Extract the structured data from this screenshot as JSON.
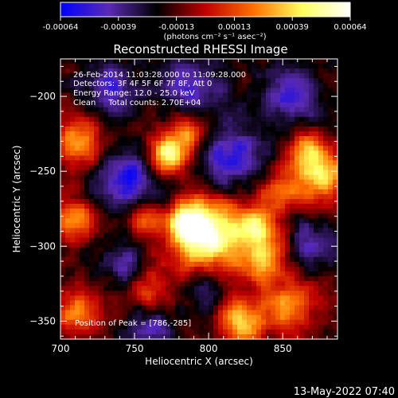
{
  "chart_data": {
    "type": "heatmap",
    "title": "Reconstructed RHESSI Image",
    "xlabel": "Heliocentric X (arcsec)",
    "ylabel": "Heliocentric Y (arcsec)",
    "xlim": [
      700,
      887
    ],
    "ylim": [
      -362,
      -175
    ],
    "x_ticks": [
      700,
      750,
      800,
      850
    ],
    "y_ticks": [
      -200,
      -250,
      -300,
      -350
    ],
    "colorbar": {
      "ticks": [
        "-0.00064",
        "-0.00039",
        "-0.00013",
        "0.00013",
        "0.00039",
        "0.00064"
      ],
      "unit_label": "(photons cm⁻² s⁻¹ asec⁻²)",
      "range": [
        -0.00064,
        0.00064
      ],
      "colors": [
        "#0000ff",
        "#5a2ab4",
        "#000000",
        "#c00000",
        "#ff7000",
        "#ffff60",
        "#ffffff"
      ]
    },
    "annotations": [
      "26-Feb-2014 11:03:28.000 to 11:09:28.000",
      "Detectors: 3F 4F 5F 6F 7F 8F, Att 0",
      "Energy Range: 12.0 - 25.0 keV",
      "Clean     Total counts: 2.70E+04"
    ],
    "peak_label": "Position of Peak = [786,-285]",
    "peak": [
      786,
      -285
    ],
    "sources": [
      {
        "x": 798,
        "y": -292,
        "amp": 1.0,
        "sigma": 16
      },
      {
        "x": 786,
        "y": -285,
        "amp": 0.7,
        "sigma": 8
      },
      {
        "x": 773,
        "y": -239,
        "amp": 0.85,
        "sigma": 9
      },
      {
        "x": 787,
        "y": -223,
        "amp": 0.45,
        "sigma": 9
      },
      {
        "x": 833,
        "y": -286,
        "amp": 0.6,
        "sigma": 10
      },
      {
        "x": 837,
        "y": -308,
        "amp": 0.55,
        "sigma": 12
      },
      {
        "x": 876,
        "y": -252,
        "amp": 0.7,
        "sigma": 12
      },
      {
        "x": 866,
        "y": -235,
        "amp": 0.45,
        "sigma": 9
      },
      {
        "x": 850,
        "y": -262,
        "amp": 0.4,
        "sigma": 9
      },
      {
        "x": 713,
        "y": -230,
        "amp": 0.55,
        "sigma": 12
      },
      {
        "x": 710,
        "y": -282,
        "amp": 0.5,
        "sigma": 10
      },
      {
        "x": 712,
        "y": -343,
        "amp": 0.45,
        "sigma": 11
      },
      {
        "x": 853,
        "y": -340,
        "amp": 0.5,
        "sigma": 13
      },
      {
        "x": 823,
        "y": -355,
        "amp": 0.55,
        "sigma": 10
      },
      {
        "x": 760,
        "y": -330,
        "amp": 0.3,
        "sigma": 12
      },
      {
        "x": 755,
        "y": -280,
        "amp": 0.35,
        "sigma": 8
      },
      {
        "x": 815,
        "y": -340,
        "amp": 0.3,
        "sigma": 9
      }
    ],
    "negative_regions": [
      {
        "x": 745,
        "y": -255,
        "amp": 0.6,
        "sigma": 14
      },
      {
        "x": 815,
        "y": -240,
        "amp": 0.6,
        "sigma": 14
      },
      {
        "x": 790,
        "y": -195,
        "amp": 0.5,
        "sigma": 14
      },
      {
        "x": 735,
        "y": -195,
        "amp": 0.5,
        "sigma": 12
      },
      {
        "x": 855,
        "y": -200,
        "amp": 0.5,
        "sigma": 14
      },
      {
        "x": 742,
        "y": -312,
        "amp": 0.45,
        "sigma": 10
      },
      {
        "x": 800,
        "y": -330,
        "amp": 0.4,
        "sigma": 10
      },
      {
        "x": 760,
        "y": -355,
        "amp": 0.45,
        "sigma": 10
      },
      {
        "x": 870,
        "y": -300,
        "amp": 0.4,
        "sigma": 12
      }
    ]
  },
  "footer": {
    "timestamp": "13-May-2022 07:40"
  }
}
